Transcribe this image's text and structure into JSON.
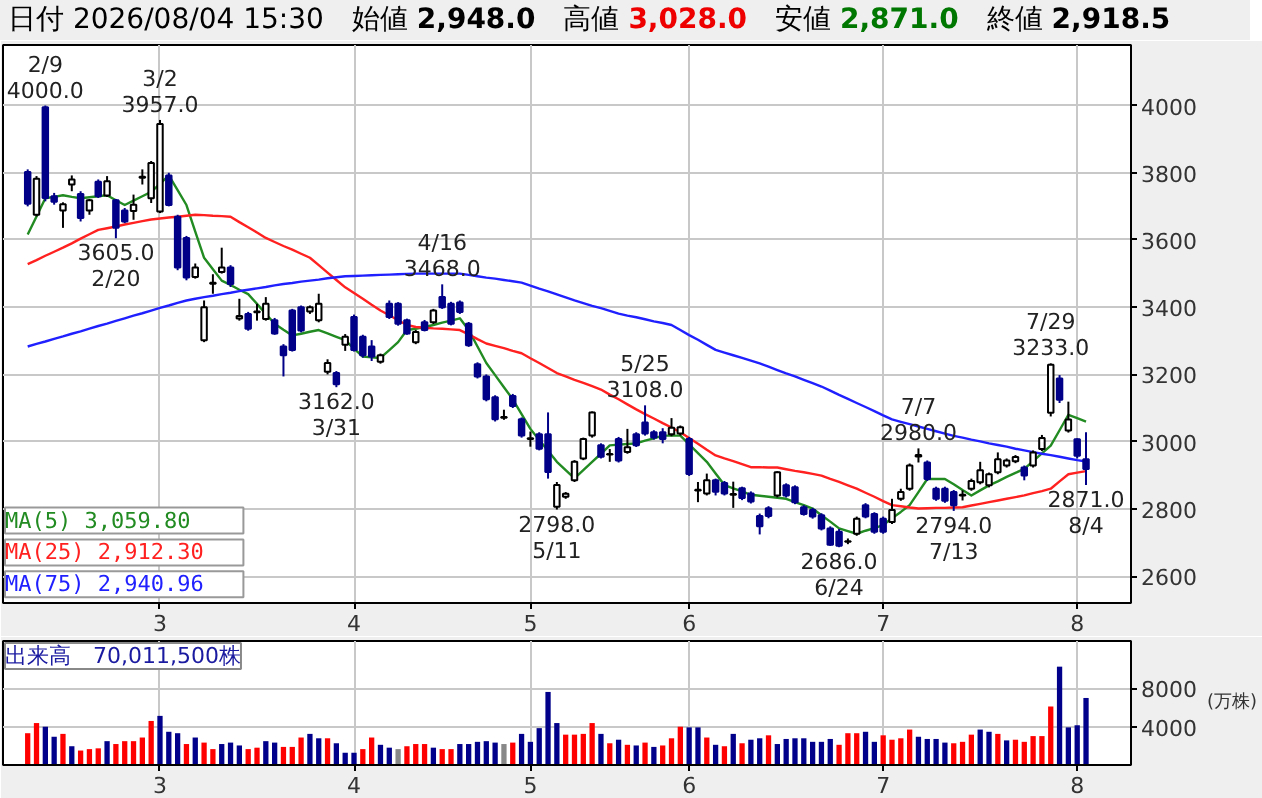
{
  "chart_data": [
    {
      "type": "candlestick",
      "title": "日付 2026/08/04 15:30",
      "annotations": [
        "始値 2,948.0",
        "高値 3,028.0",
        "安値 2,871.0",
        "終値 2,918.5",
        {
          "text": "2/9\n4000.0",
          "y": 4000
        },
        {
          "text": "3605.0\n2/20",
          "y": 3605
        },
        {
          "text": "3/2\n3957.0",
          "y": 3957
        },
        {
          "text": "3162.0\n3/31",
          "y": 3162
        },
        {
          "text": "4/16\n3468.0",
          "y": 3468
        },
        {
          "text": "2798.0\n5/11",
          "y": 2798
        },
        {
          "text": "5/25\n3108.0",
          "y": 3108
        },
        {
          "text": "2686.0\n6/24",
          "y": 2686
        },
        {
          "text": "7/7\n2980.0",
          "y": 2980
        },
        {
          "text": "2794.0\n7/13",
          "y": 2794
        },
        {
          "text": "7/29\n3233.0",
          "y": 3233
        },
        {
          "text": "2871.0\n8/4",
          "y": 2871
        }
      ],
      "categories": [
        null,
        null,
        null,
        null,
        null,
        null,
        null,
        null,
        null,
        null,
        null,
        null,
        null,
        null,
        null,
        "3",
        null,
        null,
        null,
        null,
        null,
        null,
        null,
        null,
        null,
        null,
        null,
        null,
        null,
        null,
        null,
        null,
        null,
        null,
        null,
        null,
        null,
        "4",
        null,
        null,
        null,
        null,
        null,
        null,
        null,
        null,
        null,
        null,
        null,
        null,
        null,
        null,
        null,
        null,
        null,
        null,
        null,
        "5",
        null,
        null,
        null,
        null,
        null,
        null,
        null,
        null,
        null,
        null,
        null,
        null,
        null,
        null,
        null,
        null,
        null,
        "6",
        null,
        null,
        null,
        null,
        null,
        null,
        null,
        null,
        null,
        null,
        null,
        null,
        null,
        null,
        null,
        null,
        null,
        null,
        null,
        null,
        null,
        "7",
        null,
        null,
        null,
        null,
        null,
        null,
        null,
        null,
        null,
        null,
        null,
        null,
        null,
        null,
        null,
        null,
        null,
        null,
        null,
        null,
        null,
        "8",
        null
      ],
      "ohlc": [
        [
          3802,
          3810,
          3700,
          3708
        ],
        [
          3675,
          3790,
          3670,
          3782
        ],
        [
          3995,
          4000,
          3715,
          3725
        ],
        [
          3730,
          3740,
          3705,
          3714
        ],
        [
          3688,
          3712,
          3636,
          3706
        ],
        [
          3765,
          3792,
          3745,
          3780
        ],
        [
          3737,
          3745,
          3655,
          3665
        ],
        [
          3688,
          3722,
          3675,
          3718
        ],
        [
          3773,
          3780,
          3725,
          3730
        ],
        [
          3732,
          3790,
          3728,
          3775
        ],
        [
          3718,
          3722,
          3605,
          3636
        ],
        [
          3688,
          3695,
          3650,
          3655
        ],
        [
          3686,
          3735,
          3660,
          3705
        ],
        [
          3785,
          3810,
          3765,
          3788
        ],
        [
          3724,
          3835,
          3710,
          3829
        ],
        [
          3685,
          3957,
          3680,
          3945
        ],
        [
          3792,
          3800,
          3700,
          3704
        ],
        [
          3669,
          3675,
          3510,
          3518
        ],
        [
          3606,
          3612,
          3480,
          3488
        ],
        [
          3490,
          3530,
          3485,
          3518
        ],
        [
          3302,
          3420,
          3296,
          3400
        ],
        [
          3470,
          3498,
          3440,
          3473
        ],
        [
          3505,
          3577,
          3500,
          3518
        ],
        [
          3518,
          3525,
          3460,
          3469
        ],
        [
          3366,
          3425,
          3360,
          3374
        ],
        [
          3380,
          3386,
          3330,
          3336
        ],
        [
          3385,
          3410,
          3360,
          3387
        ],
        [
          3365,
          3430,
          3360,
          3410
        ],
        [
          3361,
          3368,
          3318,
          3322
        ],
        [
          3283,
          3290,
          3194,
          3257
        ],
        [
          3390,
          3395,
          3268,
          3273
        ],
        [
          3400,
          3405,
          3325,
          3331
        ],
        [
          3387,
          3405,
          3380,
          3400
        ],
        [
          3361,
          3440,
          3355,
          3410
        ],
        [
          3208,
          3245,
          3200,
          3234
        ],
        [
          3204,
          3210,
          3162,
          3171
        ],
        [
          3288,
          3320,
          3270,
          3312
        ],
        [
          3371,
          3378,
          3268,
          3273
        ],
        [
          3312,
          3318,
          3250,
          3257
        ],
        [
          3283,
          3302,
          3240,
          3253
        ],
        [
          3238,
          3262,
          3232,
          3257
        ],
        [
          3410,
          3420,
          3365,
          3371
        ],
        [
          3410,
          3415,
          3345,
          3351
        ],
        [
          3361,
          3366,
          3318,
          3322
        ],
        [
          3296,
          3332,
          3290,
          3326
        ],
        [
          3355,
          3362,
          3328,
          3332
        ],
        [
          3355,
          3395,
          3350,
          3390
        ],
        [
          3430,
          3468,
          3395,
          3400
        ],
        [
          3410,
          3416,
          3346,
          3351
        ],
        [
          3414,
          3420,
          3380,
          3386
        ],
        [
          3351,
          3356,
          3282,
          3287
        ],
        [
          3230,
          3236,
          3188,
          3194
        ],
        [
          3194,
          3200,
          3120,
          3126
        ],
        [
          3132,
          3138,
          3060,
          3067
        ],
        [
          3071,
          3095,
          3065,
          3073
        ],
        [
          3136,
          3142,
          3100,
          3106
        ],
        [
          3067,
          3072,
          3012,
          3018
        ],
        [
          3008,
          3030,
          2985,
          3010
        ],
        [
          3022,
          3028,
          2974,
          2979
        ],
        [
          3022,
          3087,
          2890,
          2910
        ],
        [
          2806,
          2880,
          2798,
          2871
        ],
        [
          2836,
          2850,
          2830,
          2845
        ],
        [
          2885,
          2945,
          2880,
          2940
        ],
        [
          2950,
          3012,
          2945,
          3008
        ],
        [
          3018,
          3090,
          3012,
          3087
        ],
        [
          2989,
          2995,
          2950,
          2955
        ],
        [
          2962,
          2978,
          2940,
          2963
        ],
        [
          3008,
          3014,
          2938,
          2944
        ],
        [
          2969,
          3038,
          2964,
          2983
        ],
        [
          3022,
          3028,
          2984,
          2989
        ],
        [
          3057,
          3108,
          3018,
          3024
        ],
        [
          3028,
          3034,
          3006,
          3012
        ],
        [
          3028,
          3040,
          2995,
          3008
        ],
        [
          3022,
          3070,
          3016,
          3041
        ],
        [
          3024,
          3048,
          3018,
          3043
        ],
        [
          3008,
          3014,
          2898,
          2904
        ],
        [
          2855,
          2880,
          2820,
          2857
        ],
        [
          2846,
          2905,
          2840,
          2885
        ],
        [
          2885,
          2890,
          2840,
          2851
        ],
        [
          2877,
          2883,
          2840,
          2846
        ],
        [
          2842,
          2881,
          2803,
          2844
        ],
        [
          2861,
          2866,
          2826,
          2832
        ],
        [
          2846,
          2852,
          2816,
          2822
        ],
        [
          2779,
          2786,
          2724,
          2748
        ],
        [
          2802,
          2808,
          2772,
          2779
        ],
        [
          2840,
          2912,
          2834,
          2909
        ],
        [
          2870,
          2876,
          2834,
          2840
        ],
        [
          2864,
          2870,
          2814,
          2820
        ],
        [
          2805,
          2811,
          2780,
          2785
        ],
        [
          2797,
          2803,
          2771,
          2777
        ],
        [
          2781,
          2787,
          2736,
          2742
        ],
        [
          2742,
          2748,
          2690,
          2693
        ],
        [
          2732,
          2740,
          2686,
          2690
        ],
        [
          2702,
          2712,
          2695,
          2704
        ],
        [
          2726,
          2777,
          2720,
          2771
        ],
        [
          2811,
          2817,
          2772,
          2777
        ],
        [
          2785,
          2790,
          2726,
          2732
        ],
        [
          2771,
          2777,
          2726,
          2732
        ],
        [
          2761,
          2830,
          2755,
          2797
        ],
        [
          2830,
          2860,
          2824,
          2850
        ],
        [
          2860,
          2935,
          2854,
          2929
        ],
        [
          2956,
          2980,
          2938,
          2960
        ],
        [
          2938,
          2944,
          2883,
          2889
        ],
        [
          2860,
          2866,
          2824,
          2830
        ],
        [
          2860,
          2866,
          2818,
          2824
        ],
        [
          2850,
          2856,
          2794,
          2811
        ],
        [
          2840,
          2855,
          2825,
          2842
        ],
        [
          2860,
          2890,
          2854,
          2883
        ],
        [
          2879,
          2940,
          2873,
          2915
        ],
        [
          2870,
          2908,
          2864,
          2903
        ],
        [
          2909,
          2968,
          2903,
          2948
        ],
        [
          2929,
          2950,
          2923,
          2944
        ],
        [
          2942,
          2960,
          2936,
          2954
        ],
        [
          2923,
          2929,
          2885,
          2899
        ],
        [
          2929,
          2974,
          2923,
          2968
        ],
        [
          2978,
          3020,
          2972,
          3011
        ],
        [
          3086,
          3233,
          3075,
          3229
        ],
        [
          3188,
          3198,
          3115,
          3125
        ],
        [
          3033,
          3119,
          3027,
          3066
        ],
        [
          3007,
          3010,
          2950,
          2958
        ],
        [
          2948,
          3028,
          2871,
          2918.5
        ]
      ],
      "series": [
        {
          "name": "MA(5) 3,059.80",
          "type": "line",
          "color": "#228b22",
          "values": [
            3616,
            3670,
            3724,
            3728,
            3733,
            3728,
            3724,
            3727,
            3730,
            3733,
            3718,
            3704,
            3717,
            3730,
            3743,
            3767,
            3792,
            3748,
            3704,
            3625,
            3547,
            3513,
            3479,
            3466,
            3452,
            3439,
            3410,
            3380,
            3351,
            3333,
            3316,
            3321,
            3327,
            3332,
            3322,
            3312,
            3302,
            3277,
            3253,
            3251,
            3249,
            3272,
            3296,
            3332,
            3336,
            3341,
            3347,
            3354,
            3360,
            3367,
            3332,
            3283,
            3234,
            3198,
            3162,
            3126,
            3082,
            3038,
            3005,
            2973,
            2940,
            2915,
            2891,
            2915,
            2940,
            2964,
            2989,
            2991,
            2993,
            2995,
            3003,
            3010,
            3018,
            3018,
            3018,
            2992,
            2966,
            2940,
            2905,
            2871,
            2861,
            2852,
            2842,
            2839,
            2836,
            2833,
            2830,
            2820,
            2811,
            2801,
            2781,
            2762,
            2742,
            2734,
            2726,
            2735,
            2743,
            2752,
            2772,
            2791,
            2811,
            2850,
            2889,
            2889,
            2889,
            2873,
            2856,
            2840,
            2855,
            2870,
            2882,
            2895,
            2907,
            2919,
            2942,
            2965,
            2988,
            3034,
            3080,
            3070,
            3059.8
          ]
        },
        {
          "name": "MA(25) 2,912.30",
          "type": "line",
          "color": "#ff2020",
          "values": [
            3528,
            3540,
            3553,
            3565,
            3577,
            3590,
            3604,
            3617,
            3630,
            3635,
            3640,
            3646,
            3651,
            3656,
            3661,
            3664,
            3667,
            3669,
            3672,
            3675,
            3674,
            3672,
            3671,
            3669,
            3653,
            3638,
            3622,
            3606,
            3594,
            3582,
            3571,
            3559,
            3547,
            3525,
            3503,
            3481,
            3459,
            3442,
            3425,
            3407,
            3390,
            3376,
            3361,
            3347,
            3341,
            3339,
            3337,
            3336,
            3334,
            3332,
            3319,
            3305,
            3292,
            3285,
            3278,
            3270,
            3263,
            3248,
            3234,
            3219,
            3204,
            3194,
            3184,
            3175,
            3165,
            3155,
            3140,
            3126,
            3111,
            3096,
            3082,
            3069,
            3055,
            3042,
            3028,
            3011,
            2994,
            2976,
            2959,
            2950,
            2942,
            2933,
            2924,
            2924,
            2923,
            2923,
            2918,
            2913,
            2909,
            2904,
            2899,
            2889,
            2880,
            2870,
            2860,
            2848,
            2836,
            2823,
            2811,
            2808,
            2804,
            2801,
            2802,
            2803,
            2803,
            2804,
            2805,
            2810,
            2815,
            2820,
            2825,
            2830,
            2835,
            2840,
            2847,
            2853,
            2860,
            2882,
            2903,
            2908,
            2912.3
          ]
        },
        {
          "name": "MA(75) 2,940.96",
          "type": "line",
          "color": "#2020ff",
          "values": [
            3283,
            3291,
            3298,
            3306,
            3313,
            3321,
            3328,
            3336,
            3344,
            3351,
            3359,
            3367,
            3375,
            3382,
            3390,
            3398,
            3405,
            3413,
            3420,
            3425,
            3430,
            3434,
            3439,
            3443,
            3448,
            3452,
            3456,
            3460,
            3465,
            3469,
            3472,
            3476,
            3479,
            3482,
            3486,
            3489,
            3492,
            3493,
            3494,
            3495,
            3496,
            3497,
            3498,
            3499,
            3500,
            3500,
            3500,
            3500,
            3500,
            3500,
            3496,
            3492,
            3488,
            3485,
            3481,
            3477,
            3473,
            3464,
            3455,
            3447,
            3438,
            3429,
            3420,
            3412,
            3404,
            3397,
            3389,
            3381,
            3375,
            3370,
            3364,
            3358,
            3353,
            3347,
            3332,
            3317,
            3303,
            3288,
            3273,
            3265,
            3257,
            3249,
            3241,
            3233,
            3223,
            3213,
            3203,
            3194,
            3184,
            3174,
            3164,
            3152,
            3139,
            3127,
            3115,
            3103,
            3091,
            3078,
            3066,
            3059,
            3052,
            3045,
            3038,
            3031,
            3024,
            3017,
            3012,
            3006,
            3001,
            2995,
            2990,
            2985,
            2979,
            2974,
            2969,
            2964,
            2960,
            2955,
            2950,
            2945,
            2940.96
          ]
        }
      ],
      "legend": "bottom left",
      "grid": true,
      "ylim": [
        2520,
        4180
      ],
      "yticks": [
        2600,
        2800,
        3000,
        3200,
        3400,
        3600,
        3800,
        4000
      ]
    },
    {
      "type": "bar",
      "title": "出来高　70,011,500株",
      "ylabel": "(万株)",
      "categories": [
        null,
        null,
        null,
        null,
        null,
        null,
        null,
        null,
        null,
        null,
        null,
        null,
        null,
        null,
        null,
        "3",
        null,
        null,
        null,
        null,
        null,
        null,
        null,
        null,
        null,
        null,
        null,
        null,
        null,
        null,
        null,
        null,
        null,
        null,
        null,
        null,
        null,
        "4",
        null,
        null,
        null,
        null,
        null,
        null,
        null,
        null,
        null,
        null,
        null,
        null,
        null,
        null,
        null,
        null,
        null,
        null,
        null,
        "5",
        null,
        null,
        null,
        null,
        null,
        null,
        null,
        null,
        null,
        null,
        null,
        null,
        null,
        null,
        null,
        null,
        null,
        "6",
        null,
        null,
        null,
        null,
        null,
        null,
        null,
        null,
        null,
        null,
        null,
        null,
        null,
        null,
        null,
        null,
        null,
        null,
        null,
        null,
        null,
        "7",
        null,
        null,
        null,
        null,
        null,
        null,
        null,
        null,
        null,
        null,
        null,
        null,
        null,
        null,
        null,
        null,
        null,
        null,
        null,
        null,
        null,
        "8",
        null
      ],
      "values": [
        3320,
        4380,
        4000,
        2950,
        3250,
        1960,
        1510,
        1660,
        1740,
        2490,
        2190,
        2490,
        2490,
        2870,
        4600,
        5130,
        3470,
        3320,
        2190,
        2870,
        2340,
        1660,
        2190,
        2340,
        2040,
        1660,
        1810,
        2490,
        2340,
        1890,
        1890,
        2870,
        3250,
        2790,
        2790,
        2270,
        1280,
        1280,
        1660,
        2870,
        2110,
        1810,
        1660,
        1960,
        2190,
        2190,
        1810,
        1660,
        1660,
        2190,
        2190,
        2420,
        2490,
        2340,
        2190,
        2340,
        3250,
        2420,
        3850,
        7630,
        4380,
        3170,
        3170,
        3250,
        4380,
        3250,
        2270,
        2640,
        2110,
        2040,
        2340,
        1890,
        2040,
        2790,
        4000,
        3930,
        3930,
        2870,
        2110,
        1960,
        3250,
        2270,
        2640,
        2790,
        3100,
        2190,
        2720,
        2790,
        2790,
        2420,
        2420,
        2720,
        2110,
        3320,
        3320,
        3470,
        2420,
        3100,
        2640,
        2790,
        3700,
        2950,
        2720,
        2720,
        2340,
        2270,
        2420,
        3170,
        3700,
        3470,
        3250,
        2570,
        2640,
        2420,
        3020,
        3020,
        6110,
        10270,
        3930,
        4150,
        7001
      ],
      "colors": [
        "#ff0000",
        "#ff0000",
        "#00008b",
        "#00008b",
        "#ff0000",
        "#00008b",
        "#ff0000",
        "#ff0000",
        "#ff0000",
        "#00008b",
        "#ff0000",
        "#ff0000",
        "#ff0000",
        "#ff0000",
        "#ff0000",
        "#00008b",
        "#00008b",
        "#00008b",
        "#ff0000",
        "#00008b",
        "#ff0000",
        "#ff0000",
        "#00008b",
        "#00008b",
        "#00008b",
        "#ff0000",
        "#ff0000",
        "#00008b",
        "#00008b",
        "#ff0000",
        "#ff0000",
        "#ff0000",
        "#00008b",
        "#00008b",
        "#ff0000",
        "#00008b",
        "#00008b",
        "#00008b",
        "#ff0000",
        "#ff0000",
        "#00008b",
        "#00008b",
        "#888888",
        "#ff0000",
        "#ff0000",
        "#ff0000",
        "#00008b",
        "#ff0000",
        "#ff0000",
        "#00008b",
        "#00008b",
        "#00008b",
        "#00008b",
        "#00008b",
        "#888888",
        "#ff0000",
        "#00008b",
        "#00008b",
        "#00008b",
        "#00008b",
        "#00008b",
        "#ff0000",
        "#ff0000",
        "#ff0000",
        "#ff0000",
        "#00008b",
        "#ff0000",
        "#00008b",
        "#ff0000",
        "#00008b",
        "#ff0000",
        "#00008b",
        "#ff0000",
        "#ff0000",
        "#ff0000",
        "#00008b",
        "#00008b",
        "#ff0000",
        "#00008b",
        "#ff0000",
        "#00008b",
        "#ff0000",
        "#00008b",
        "#00008b",
        "#ff0000",
        "#00008b",
        "#00008b",
        "#00008b",
        "#00008b",
        "#00008b",
        "#00008b",
        "#00008b",
        "#ff0000",
        "#ff0000",
        "#ff0000",
        "#00008b",
        "#00008b",
        "#ff0000",
        "#ff0000",
        "#ff0000",
        "#ff0000",
        "#00008b",
        "#00008b",
        "#00008b",
        "#00008b",
        "#ff0000",
        "#ff0000",
        "#ff0000",
        "#00008b",
        "#00008b",
        "#ff0000",
        "#00008b",
        "#ff0000",
        "#ff0000",
        "#ff0000",
        "#ff0000",
        "#ff0000",
        "#00008b",
        "#00008b",
        "#00008b",
        "#00008b"
      ],
      "grid": true,
      "ylim": [
        0,
        12950
      ],
      "yticks": [
        4000,
        8000
      ]
    }
  ]
}
